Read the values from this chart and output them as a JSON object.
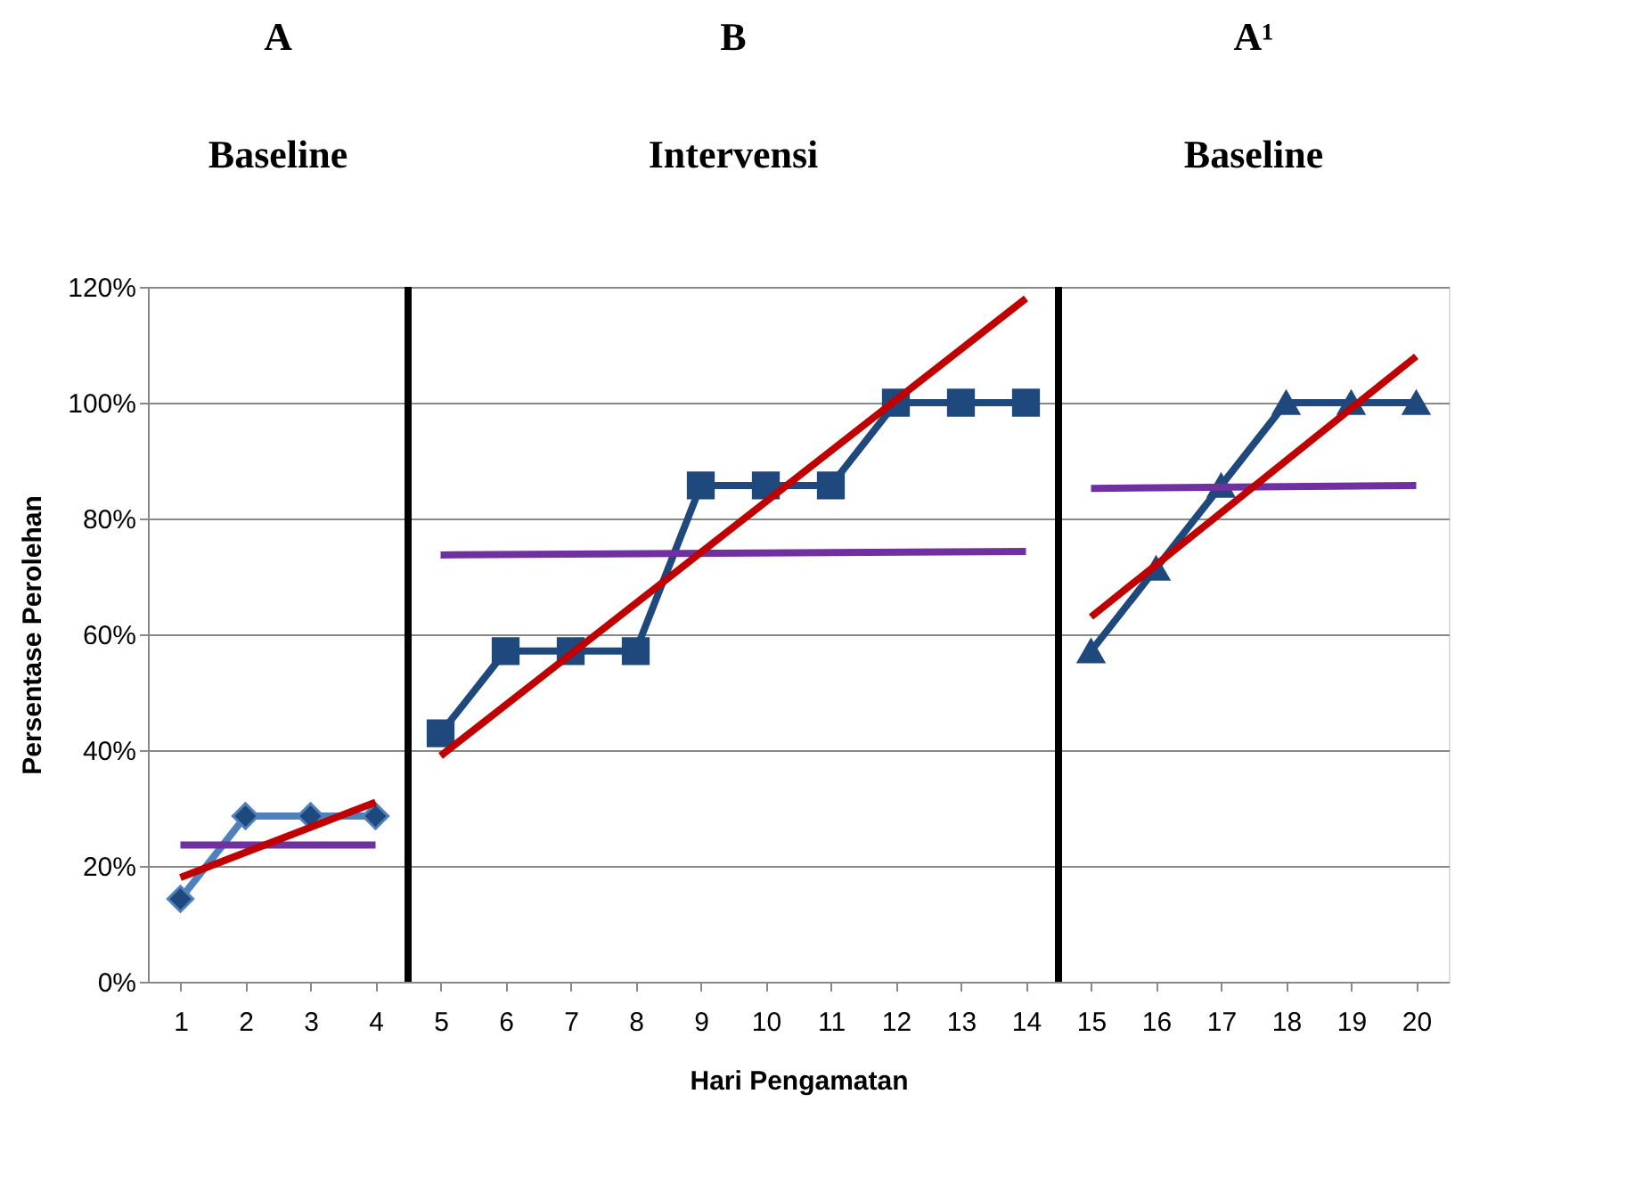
{
  "chart_data": {
    "type": "line",
    "xlabel": "Hari Pengamatan",
    "ylabel": "Persentase Perolehan",
    "annotations": [
      "A",
      "B",
      "A¹",
      "Baseline",
      "Intervensi",
      "Baseline"
    ],
    "xlim": [
      0.5,
      20.5
    ],
    "xticks": [
      1,
      2,
      3,
      4,
      5,
      6,
      7,
      8,
      9,
      10,
      11,
      12,
      13,
      14,
      15,
      16,
      17,
      18,
      19,
      20
    ],
    "ylim": [
      0,
      120
    ],
    "yticks": [
      {
        "value": 0,
        "label": "0%"
      },
      {
        "value": 20,
        "label": "20%"
      },
      {
        "value": 40,
        "label": "40%"
      },
      {
        "value": 60,
        "label": "60%"
      },
      {
        "value": 80,
        "label": "80%"
      },
      {
        "value": 100,
        "label": "100%"
      },
      {
        "value": 120,
        "label": "120%"
      }
    ],
    "grid": "y",
    "ref_lines": [
      {
        "axis": "x",
        "value": 4.5,
        "color": "#000000"
      },
      {
        "axis": "x",
        "value": 14.5,
        "color": "#000000"
      }
    ],
    "series": [
      {
        "color": "#4f81bd",
        "marker": "diamond",
        "x": [
          1,
          2,
          3,
          4
        ],
        "values": [
          14.3,
          28.6,
          28.6,
          28.6
        ]
      },
      {
        "color": "#1f497d",
        "marker": "square",
        "x": [
          5,
          6,
          7,
          8,
          9,
          10,
          11,
          12,
          13,
          14
        ],
        "values": [
          42.9,
          57.1,
          57.1,
          57.1,
          85.7,
          85.7,
          85.7,
          100,
          100,
          100
        ]
      },
      {
        "color": "#1f497d",
        "marker": "triangle",
        "x": [
          15,
          16,
          17,
          18,
          19,
          20
        ],
        "values": [
          57.1,
          71.4,
          85.7,
          100,
          100,
          100
        ]
      },
      {
        "color": "#7030a0",
        "marker": "none",
        "x": [
          1,
          4
        ],
        "values": [
          23.6,
          23.6
        ]
      },
      {
        "color": "#7030a0",
        "marker": "none",
        "x": [
          5,
          14
        ],
        "values": [
          73.7,
          74.3
        ]
      },
      {
        "color": "#7030a0",
        "marker": "none",
        "x": [
          15,
          20
        ],
        "values": [
          85.2,
          85.7
        ]
      },
      {
        "color": "#c00000",
        "marker": "none",
        "x": [
          1,
          4
        ],
        "values": [
          18,
          31
        ]
      },
      {
        "color": "#c00000",
        "marker": "none",
        "x": [
          5,
          14
        ],
        "values": [
          39,
          118
        ]
      },
      {
        "color": "#c00000",
        "marker": "none",
        "x": [
          15,
          20
        ],
        "values": [
          63,
          108
        ]
      }
    ]
  }
}
